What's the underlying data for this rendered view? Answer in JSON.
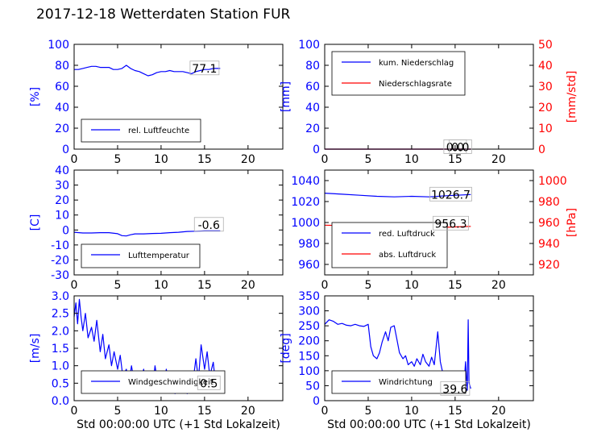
{
  "title": "2017-12-18 Wetterdaten Station FUR",
  "colors": {
    "blue": "#0000ff",
    "red": "#ff0000",
    "light_blue": "#7b7bff",
    "axis": "#000000"
  },
  "xlabel": "Std 00:00:00 UTC (+1 Std Lokalzeit)",
  "chart_data": [
    {
      "id": "humidity",
      "type": "line",
      "xlim": [
        0,
        24
      ],
      "xticks": [
        0,
        5,
        10,
        15,
        20
      ],
      "ylim": [
        0,
        100
      ],
      "yticks": [
        0,
        20,
        40,
        60,
        80,
        100
      ],
      "ylabel": "[%]",
      "legend": {
        "placement": "lower-left",
        "entries": [
          {
            "name": "rel. Luftfeuchte",
            "color": "blue"
          }
        ]
      },
      "annotations": [
        {
          "text": "77.1",
          "x": 15.0,
          "y": 77.1
        }
      ],
      "series": [
        {
          "name": "rel. Luftfeuchte",
          "color": "blue",
          "x": [
            0,
            0.5,
            1,
            1.5,
            2,
            2.5,
            3,
            3.5,
            4,
            4.5,
            5,
            5.5,
            6,
            6.5,
            7,
            7.5,
            8,
            8.5,
            9,
            9.5,
            10,
            10.5,
            11,
            11.5,
            12,
            12.5,
            13,
            13.5,
            14,
            14.5,
            15,
            15.5,
            16,
            16.5,
            16.8
          ],
          "y": [
            76,
            76,
            77,
            78,
            79,
            79,
            78,
            78,
            78,
            76,
            76,
            77,
            80,
            77,
            75,
            74,
            72,
            70,
            71,
            73,
            74,
            74,
            75,
            74,
            74,
            74,
            73,
            72,
            74,
            75,
            76,
            76,
            77,
            77,
            77
          ]
        }
      ]
    },
    {
      "id": "precipitation",
      "type": "line",
      "xlim": [
        0,
        24
      ],
      "xticks": [
        0,
        5,
        10,
        15,
        20
      ],
      "ylim": [
        0,
        100
      ],
      "yticks": [
        0,
        20,
        40,
        60,
        80,
        100
      ],
      "ylabel": "[mm]",
      "ylim_right": [
        0,
        50
      ],
      "yticks_right": [
        0,
        10,
        20,
        30,
        40,
        50
      ],
      "ylabel_right": "[mm/std]",
      "legend": {
        "placement": "upper-left",
        "entries": [
          {
            "name": "kum. Niederschlag",
            "color": "blue"
          },
          {
            "name": "Niederschlagsrate",
            "color": "red"
          }
        ]
      },
      "annotations": [
        {
          "text": "0.0",
          "x": 15.0,
          "y": 2
        },
        {
          "text": "0.0",
          "x": 15.6,
          "y": 2
        }
      ],
      "series": [
        {
          "name": "kum. Niederschlag",
          "color": "blue",
          "axis": "left",
          "x": [
            0,
            16.8
          ],
          "y": [
            0,
            0
          ]
        },
        {
          "name": "Niederschlagsrate",
          "color": "red",
          "axis": "right",
          "x": [
            0,
            16.8
          ],
          "y": [
            0,
            0
          ]
        }
      ]
    },
    {
      "id": "temperature",
      "type": "line",
      "xlim": [
        0,
        24
      ],
      "xticks": [
        0,
        5,
        10,
        15,
        20
      ],
      "ylim": [
        -30,
        40
      ],
      "yticks": [
        -30,
        -20,
        -10,
        0,
        10,
        20,
        30,
        40
      ],
      "ylabel": "[C]",
      "legend": {
        "placement": "lower-left",
        "entries": [
          {
            "name": "Lufttemperatur",
            "color": "blue"
          }
        ]
      },
      "annotations": [
        {
          "text": "-0.6",
          "x": 15.5,
          "y": 3.5
        }
      ],
      "series": [
        {
          "name": "Lufttemperatur",
          "color": "blue",
          "x": [
            0,
            1,
            2,
            3,
            4,
            5,
            5.5,
            6,
            6.5,
            7,
            8,
            9,
            10,
            11,
            12,
            13,
            14,
            15,
            16,
            16.8
          ],
          "y": [
            -1.5,
            -2.0,
            -2.0,
            -1.8,
            -1.8,
            -2.5,
            -3.8,
            -4.0,
            -3.2,
            -2.6,
            -2.6,
            -2.3,
            -2.2,
            -1.8,
            -1.5,
            -1.0,
            -0.8,
            -0.6,
            -0.6,
            -0.6
          ]
        }
      ]
    },
    {
      "id": "pressure",
      "type": "line",
      "xlim": [
        0,
        24
      ],
      "xticks": [
        0,
        5,
        10,
        15,
        20
      ],
      "ylim": [
        950,
        1050
      ],
      "yticks": [
        960,
        980,
        1000,
        1020,
        1040
      ],
      "ylim_right": [
        910,
        1010
      ],
      "yticks_right": [
        920,
        940,
        960,
        980,
        1000
      ],
      "ylabel_right": "[hPa]",
      "legend": {
        "placement": "lower-left",
        "entries": [
          {
            "name": "red. Luftdruck",
            "color": "blue"
          },
          {
            "name": "abs. Luftdruck",
            "color": "red"
          }
        ]
      },
      "annotations": [
        {
          "text": "1026.7",
          "x": 14.5,
          "y": 1026.7
        },
        {
          "text": "956.3",
          "x": 14.5,
          "y": 999
        }
      ],
      "series": [
        {
          "name": "red. Luftdruck",
          "color": "blue",
          "axis": "left",
          "x": [
            0,
            2,
            4,
            6,
            8,
            10,
            12,
            14,
            16.8
          ],
          "y": [
            1028,
            1027,
            1026,
            1025,
            1024.5,
            1025,
            1024.5,
            1025.5,
            1026.7
          ]
        },
        {
          "name": "abs. Luftdruck",
          "color": "red",
          "axis": "right",
          "x": [
            0,
            2,
            4,
            6,
            8,
            10,
            12,
            14,
            16.8
          ],
          "y": [
            957.5,
            957,
            956,
            955,
            954.5,
            955,
            954.5,
            955.5,
            956.3
          ]
        }
      ]
    },
    {
      "id": "windspeed",
      "type": "line",
      "xlim": [
        0,
        24
      ],
      "xticks": [
        0,
        5,
        10,
        15,
        20
      ],
      "ylim": [
        0,
        3.0
      ],
      "yticks": [
        0.0,
        0.5,
        1.0,
        1.5,
        2.0,
        2.5,
        3.0
      ],
      "ylabel": "[m/s]",
      "legend": {
        "placement": "lower-left",
        "entries": [
          {
            "name": "Windgeschwindigkeit",
            "color": "blue"
          }
        ]
      },
      "annotations": [
        {
          "text": "0.5",
          "x": 15.5,
          "y": 0.5
        }
      ],
      "series": [
        {
          "name": "Windgeschwindigkeit",
          "color": "blue",
          "x": [
            0,
            0.2,
            0.4,
            0.6,
            0.8,
            1.0,
            1.3,
            1.6,
            2.0,
            2.3,
            2.6,
            3.0,
            3.3,
            3.6,
            4.0,
            4.3,
            4.6,
            5.0,
            5.3,
            5.6,
            6.0,
            6.3,
            6.6,
            7.0,
            7.3,
            7.6,
            8.0,
            8.3,
            8.6,
            9.0,
            9.3,
            9.6,
            10.0,
            10.3,
            10.6,
            11.0,
            11.3,
            11.6,
            12.0,
            12.3,
            12.6,
            13.0,
            13.3,
            13.6,
            14.0,
            14.3,
            14.6,
            15.0,
            15.3,
            15.6,
            16.0,
            16.3,
            16.6,
            16.8
          ],
          "y": [
            2.4,
            2.8,
            2.2,
            2.9,
            2.4,
            2.0,
            2.5,
            1.8,
            2.1,
            1.7,
            2.3,
            1.4,
            1.9,
            1.2,
            1.6,
            1.0,
            1.4,
            0.9,
            1.3,
            0.7,
            0.9,
            0.5,
            1.0,
            0.4,
            0.8,
            0.5,
            0.9,
            0.4,
            0.7,
            0.3,
            1.0,
            0.5,
            0.8,
            0.4,
            0.9,
            0.3,
            0.6,
            0.2,
            0.5,
            0.3,
            0.7,
            0.2,
            0.8,
            0.4,
            1.2,
            0.6,
            1.6,
            0.9,
            1.4,
            0.7,
            1.1,
            0.4,
            0.6,
            0.5
          ]
        }
      ]
    },
    {
      "id": "winddirection",
      "type": "line",
      "xlim": [
        0,
        24
      ],
      "xticks": [
        0,
        5,
        10,
        15,
        20
      ],
      "ylim": [
        0,
        350
      ],
      "yticks": [
        0,
        50,
        100,
        150,
        200,
        250,
        300,
        350
      ],
      "ylabel": "[deg]",
      "legend": {
        "placement": "lower-left",
        "entries": [
          {
            "name": "Windrichtung",
            "color": "blue"
          }
        ]
      },
      "annotations": [
        {
          "text": "39.6",
          "x": 15.0,
          "y": 39.6
        }
      ],
      "series": [
        {
          "name": "Windrichtung",
          "color": "blue",
          "x": [
            0,
            0.5,
            1,
            1.5,
            2,
            2.5,
            3,
            3.5,
            4,
            4.5,
            5,
            5.3,
            5.6,
            6.0,
            6.3,
            6.6,
            7.0,
            7.3,
            7.6,
            8.0,
            8.3,
            8.6,
            9.0,
            9.3,
            9.6,
            10.0,
            10.3,
            10.6,
            11.0,
            11.3,
            11.6,
            12.0,
            12.3,
            12.6,
            13.0,
            13.3,
            13.6,
            14.0,
            14.3,
            14.6,
            15.0,
            15.3,
            15.6,
            16.0,
            16.2,
            16.4,
            16.5,
            16.6,
            16.8
          ],
          "y": [
            255,
            270,
            265,
            255,
            258,
            252,
            250,
            255,
            250,
            248,
            255,
            180,
            150,
            140,
            160,
            195,
            230,
            200,
            245,
            250,
            205,
            160,
            140,
            150,
            120,
            130,
            115,
            140,
            120,
            155,
            130,
            115,
            145,
            120,
            230,
            130,
            90,
            40,
            70,
            30,
            50,
            60,
            30,
            40,
            130,
            35,
            270,
            60,
            40
          ]
        }
      ]
    }
  ]
}
